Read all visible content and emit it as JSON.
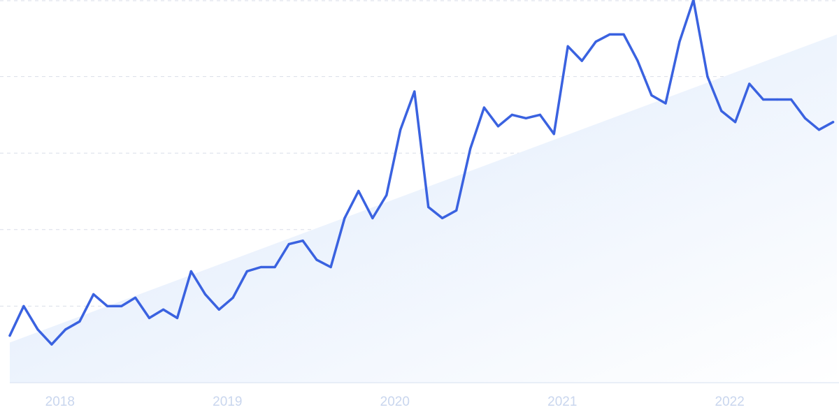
{
  "chart_data": {
    "type": "line",
    "xlabel": "",
    "ylabel": "",
    "x_range": [
      2017.7,
      2022.64
    ],
    "ylim": [
      0,
      100
    ],
    "grid": true,
    "legend": "none",
    "x_ticks": [
      {
        "value": 2018,
        "label": "2018"
      },
      {
        "value": 2019,
        "label": "2019"
      },
      {
        "value": 2020,
        "label": "2020"
      },
      {
        "value": 2021,
        "label": "2021"
      },
      {
        "value": 2022,
        "label": "2022"
      }
    ],
    "y_gridlines": [
      20,
      40,
      60,
      80,
      100
    ],
    "series": [
      {
        "values": [
          [
            2017.7,
            12.3
          ],
          [
            2017.783,
            20.0
          ],
          [
            2017.867,
            13.9
          ],
          [
            2017.95,
            10.0
          ],
          [
            2018.033,
            13.9
          ],
          [
            2018.117,
            16.0
          ],
          [
            2018.2,
            23.1
          ],
          [
            2018.283,
            20.0
          ],
          [
            2018.367,
            20.0
          ],
          [
            2018.45,
            22.2
          ],
          [
            2018.533,
            16.9
          ],
          [
            2018.617,
            19.1
          ],
          [
            2018.7,
            16.9
          ],
          [
            2018.783,
            29.1
          ],
          [
            2018.867,
            23.1
          ],
          [
            2018.95,
            19.1
          ],
          [
            2019.033,
            22.2
          ],
          [
            2019.117,
            29.1
          ],
          [
            2019.2,
            30.2
          ],
          [
            2019.283,
            30.2
          ],
          [
            2019.367,
            36.2
          ],
          [
            2019.45,
            37.1
          ],
          [
            2019.533,
            32.1
          ],
          [
            2019.617,
            30.2
          ],
          [
            2019.7,
            43.0
          ],
          [
            2019.783,
            50.1
          ],
          [
            2019.867,
            43.0
          ],
          [
            2019.95,
            49.0
          ],
          [
            2020.033,
            66.1
          ],
          [
            2020.117,
            76.1
          ],
          [
            2020.2,
            45.9
          ],
          [
            2020.283,
            43.0
          ],
          [
            2020.367,
            45.0
          ],
          [
            2020.45,
            61.1
          ],
          [
            2020.533,
            71.9
          ],
          [
            2020.617,
            67.0
          ],
          [
            2020.7,
            70.0
          ],
          [
            2020.783,
            69.1
          ],
          [
            2020.867,
            70.0
          ],
          [
            2020.95,
            65.0
          ],
          [
            2021.033,
            87.9
          ],
          [
            2021.117,
            84.1
          ],
          [
            2021.2,
            89.1
          ],
          [
            2021.283,
            91.0
          ],
          [
            2021.367,
            91.0
          ],
          [
            2021.45,
            84.1
          ],
          [
            2021.533,
            75.1
          ],
          [
            2021.617,
            73.0
          ],
          [
            2021.7,
            89.1
          ],
          [
            2021.783,
            100.0
          ],
          [
            2021.867,
            80.0
          ],
          [
            2021.95,
            71.0
          ],
          [
            2022.033,
            68.1
          ],
          [
            2022.117,
            78.1
          ],
          [
            2022.2,
            74.0
          ],
          [
            2022.283,
            74.0
          ],
          [
            2022.367,
            74.0
          ],
          [
            2022.45,
            69.1
          ],
          [
            2022.533,
            66.1
          ],
          [
            2022.617,
            68.1
          ]
        ]
      }
    ],
    "trend": {
      "start": [
        2017.7,
        10.5
      ],
      "end": [
        2022.64,
        91.0
      ]
    },
    "colors": {
      "line": "#3a62e0",
      "trend_fill_top": "#dbe8fb",
      "trend_fill_bottom": "#ffffff"
    }
  }
}
